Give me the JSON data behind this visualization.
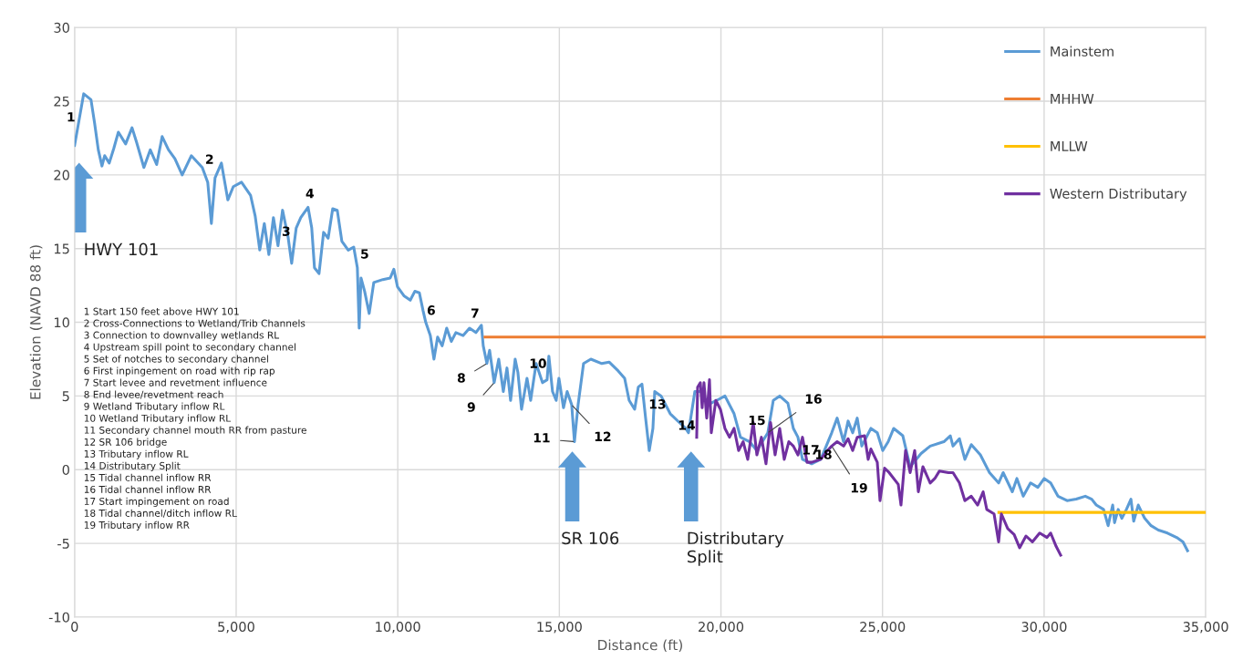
{
  "chart_data": {
    "type": "line",
    "xlabel": "Distance (ft)",
    "ylabel": "Elevation (NAVD 88 ft)",
    "xlim": [
      0,
      35000
    ],
    "ylim": [
      -10,
      30
    ],
    "xticks": [
      0,
      {
        "value": 5000,
        "label": "5,000"
      },
      {
        "value": 10000,
        "label": "10,000"
      },
      {
        "value": 15000,
        "label": "15,000"
      },
      {
        "value": 20000,
        "label": "20,000"
      },
      {
        "value": 25000,
        "label": "25,000"
      },
      {
        "value": 30000,
        "label": "30,000"
      },
      {
        "value": 35000,
        "label": "35,000"
      }
    ],
    "yticks": [
      -10,
      -5,
      0,
      5,
      10,
      15,
      20,
      25,
      30
    ],
    "grid": true,
    "legend": "top right",
    "marker": "none",
    "line_style": "solid",
    "series": [
      {
        "name": "Mainstem",
        "color": "#5b9bd5",
        "x": [
          0,
          282,
          508,
          620,
          734,
          847,
          931,
          1072,
          1214,
          1355,
          1580,
          1778,
          1920,
          2145,
          2343,
          2540,
          2710,
          2907,
          3105,
          3330,
          3612,
          3951,
          4120,
          4233,
          4346,
          4544,
          4742,
          4911,
          5165,
          5447,
          5589,
          5730,
          5871,
          6012,
          6153,
          6294,
          6435,
          6605,
          6717,
          6858,
          7000,
          7225,
          7338,
          7423,
          7564,
          7705,
          7846,
          7987,
          8128,
          8270,
          8467,
          8637,
          8750,
          8806,
          8863,
          8975,
          9116,
          9258,
          9540,
          9766,
          9879,
          9992,
          10190,
          10387,
          10528,
          10669,
          10782,
          10866,
          11007,
          11120,
          11233,
          11374,
          11515,
          11657,
          11798,
          12024,
          12221,
          12418,
          12588,
          12645,
          12758,
          12842,
          12983,
          13124,
          13266,
          13379,
          13491,
          13633,
          13717,
          13830,
          13999,
          14112,
          14281,
          14479,
          14620,
          14676,
          14789,
          14902,
          14987,
          15128,
          15241,
          15382,
          15467,
          15580,
          15749,
          15975,
          16314,
          16540,
          16822,
          17020,
          17160,
          17330,
          17443,
          17556,
          17669,
          17782,
          17895,
          17951,
          18148,
          18430,
          18713,
          18910,
          18995,
          19193,
          19419,
          19588,
          19870,
          20124,
          20406,
          20604,
          20886,
          21112,
          21451,
          21620,
          21818,
          22072,
          22241,
          22383,
          22524,
          22806,
          23088,
          23258,
          23427,
          23596,
          23794,
          23935,
          24076,
          24217,
          24358,
          24640,
          24838,
          25007,
          25176,
          25346,
          25628,
          25854,
          26193,
          26475,
          26899,
          27097,
          27181,
          27379,
          27548,
          27746,
          28028,
          28310,
          28592,
          28733,
          29016,
          29157,
          29354,
          29580,
          29806,
          30004,
          30202,
          30428,
          30710,
          30992,
          31275,
          31472,
          31614,
          31840,
          31981,
          32122,
          32179,
          32292,
          32405,
          32546,
          32687,
          32772,
          32913,
          33111,
          33309,
          33535,
          33817,
          34099,
          34297,
          34438
        ],
        "values": [
          22.0,
          25.5,
          25.1,
          23.5,
          21.7,
          20.6,
          21.3,
          20.8,
          21.8,
          22.9,
          22.1,
          23.2,
          22.2,
          20.5,
          21.7,
          20.7,
          22.6,
          21.7,
          21.1,
          20.0,
          21.3,
          20.5,
          19.5,
          16.7,
          19.8,
          20.8,
          18.3,
          19.2,
          19.5,
          18.6,
          17.2,
          14.9,
          16.7,
          14.6,
          17.1,
          15.2,
          17.6,
          15.8,
          14.0,
          16.4,
          17.1,
          17.8,
          16.4,
          13.7,
          13.3,
          16.1,
          15.7,
          17.7,
          17.6,
          15.5,
          14.9,
          15.1,
          13.7,
          9.6,
          13.0,
          12.1,
          10.6,
          12.7,
          12.9,
          13.0,
          13.6,
          12.4,
          11.8,
          11.5,
          12.1,
          12.0,
          10.8,
          10.0,
          9.1,
          7.5,
          9.0,
          8.4,
          9.6,
          8.7,
          9.3,
          9.1,
          9.6,
          9.3,
          9.8,
          8.4,
          7.2,
          8.1,
          5.9,
          7.5,
          5.3,
          6.9,
          4.7,
          7.5,
          6.6,
          4.1,
          6.2,
          4.7,
          7.2,
          5.9,
          6.1,
          7.7,
          5.3,
          4.7,
          6.2,
          4.2,
          5.3,
          4.4,
          1.9,
          4.4,
          7.2,
          7.5,
          7.2,
          7.3,
          6.7,
          6.2,
          4.7,
          4.1,
          5.6,
          5.8,
          3.5,
          1.3,
          2.8,
          5.3,
          5.0,
          3.8,
          3.2,
          2.8,
          2.5,
          5.3,
          5.3,
          4.4,
          4.7,
          5.0,
          3.8,
          2.2,
          1.9,
          1.3,
          2.5,
          4.7,
          5.0,
          4.5,
          2.8,
          2.2,
          0.7,
          0.4,
          0.7,
          1.6,
          2.5,
          3.5,
          1.9,
          3.3,
          2.5,
          3.5,
          1.6,
          2.8,
          2.5,
          1.3,
          1.9,
          2.8,
          2.3,
          0.2,
          1.1,
          1.6,
          1.9,
          2.3,
          1.6,
          2.1,
          0.7,
          1.7,
          1.0,
          -0.2,
          -0.9,
          -0.2,
          -1.5,
          -0.6,
          -1.8,
          -0.9,
          -1.2,
          -0.6,
          -0.9,
          -1.8,
          -2.1,
          -2.0,
          -1.8,
          -2.0,
          -2.4,
          -2.7,
          -3.8,
          -2.4,
          -3.6,
          -2.7,
          -3.3,
          -2.7,
          -2.0,
          -3.5,
          -2.4,
          -3.3,
          -3.8,
          -4.1,
          -4.3,
          -4.6,
          -4.9,
          -5.5
        ]
      },
      {
        "name": "MHHW",
        "color": "#ed7d31",
        "x": [
          12700,
          35000
        ],
        "values": [
          9.0,
          9.0
        ]
      },
      {
        "name": "MLLW",
        "color": "#ffc000",
        "x": [
          28600,
          35000
        ],
        "values": [
          -2.9,
          -2.9
        ]
      },
      {
        "name": "Western Distributary",
        "color": "#7030a0",
        "x": [
          19250,
          19278,
          19363,
          19419,
          19475,
          19560,
          19645,
          19701,
          19842,
          19983,
          20124,
          20265,
          20406,
          20547,
          20688,
          20829,
          20999,
          21112,
          21253,
          21394,
          21535,
          21676,
          21818,
          21959,
          22100,
          22241,
          22383,
          22524,
          22665,
          22806,
          23088,
          23258,
          23427,
          23596,
          23794,
          23935,
          24076,
          24217,
          24443,
          24556,
          24640,
          24838,
          24922,
          25063,
          25205,
          25487,
          25571,
          25713,
          25854,
          25995,
          26108,
          26249,
          26475,
          26617,
          26758,
          27040,
          27181,
          27379,
          27548,
          27746,
          27943,
          28113,
          28226,
          28451,
          28592,
          28677,
          28874,
          29072,
          29241,
          29439,
          29636,
          29862,
          30089,
          30202,
          30371,
          30512
        ],
        "values": [
          2.2,
          5.6,
          5.9,
          4.2,
          5.9,
          3.5,
          6.1,
          2.5,
          4.7,
          4.1,
          2.8,
          2.2,
          2.8,
          1.3,
          1.9,
          0.7,
          3.2,
          1.0,
          2.2,
          0.4,
          3.2,
          1.0,
          2.8,
          0.7,
          1.9,
          1.6,
          1.0,
          2.2,
          0.5,
          0.5,
          0.7,
          1.2,
          1.6,
          1.9,
          1.6,
          2.1,
          1.3,
          2.2,
          2.3,
          0.7,
          1.4,
          0.5,
          -2.1,
          0.1,
          -0.2,
          -1.0,
          -2.4,
          1.3,
          -0.2,
          1.3,
          -1.5,
          0.2,
          -0.9,
          -0.6,
          -0.1,
          -0.2,
          -0.2,
          -0.9,
          -2.1,
          -1.8,
          -2.4,
          -1.5,
          -2.7,
          -3.0,
          -4.9,
          -3.0,
          -4.0,
          -4.4,
          -5.3,
          -4.5,
          -4.9,
          -4.3,
          -4.6,
          -4.3,
          -5.2,
          -5.8
        ]
      }
    ],
    "annotations": [
      {
        "text": "1",
        "x": 0,
        "y": 22.0
      },
      {
        "text": "2",
        "x": 4120,
        "y": 19.5
      },
      {
        "text": "3",
        "x": 6717,
        "y": 14.0
      },
      {
        "text": "4",
        "x": 7225,
        "y": 17.8
      },
      {
        "text": "5",
        "x": 8750,
        "y": 13.7
      },
      {
        "text": "6",
        "x": 10866,
        "y": 10.0
      },
      {
        "text": "7",
        "x": 12588,
        "y": 9.8
      },
      {
        "text": "8",
        "x": 12758,
        "y": 7.2
      },
      {
        "text": "9",
        "x": 12983,
        "y": 5.9
      },
      {
        "text": "10",
        "x": 14479,
        "y": 5.9
      },
      {
        "text": "11",
        "x": 15467,
        "y": 1.9
      },
      {
        "text": "12",
        "x": 15382,
        "y": 4.4
      },
      {
        "text": "13",
        "x": 17951,
        "y": 5.3
      },
      {
        "text": "14",
        "x": 19250,
        "y": 2.2
      },
      {
        "text": "15",
        "x": 21112,
        "y": 1.3
      },
      {
        "text": "16",
        "x": 21451,
        "y": 2.5
      },
      {
        "text": "17",
        "x": 22524,
        "y": 2.2
      },
      {
        "text": "18",
        "x": 22806,
        "y": 0.4
      },
      {
        "text": "19",
        "x": 23427,
        "y": 1.6
      },
      "HWY 101",
      "SR 106",
      "Distributary\nSplit",
      "1 Start 150 feet above HWY 101\n2 Cross-Connections to Wetland/Trib Channels\n3 Connection to downvalley wetlands RL\n4 Upstream spill point to secondary channel\n5 Set of notches to secondary channel\n6 First inpingement on road with rip rap\n7 Start levee and revetment influence\n8 End levee/revetment reach\n9 Wetland Tributary inflow RL\n10 Wetland Tributary inflow RL\n11 Secondary channel mouth RR from pasture\n12 SR 106 bridge\n13 Tributary inflow RL\n14 Distributary Split\n15 Tidal channel inflow RR\n16 Tidal channel inflow RR\n17 Start impingement on road\n18 Tidal channel/ditch inflow RL\n19 Tributary inflow RR"
    ]
  }
}
